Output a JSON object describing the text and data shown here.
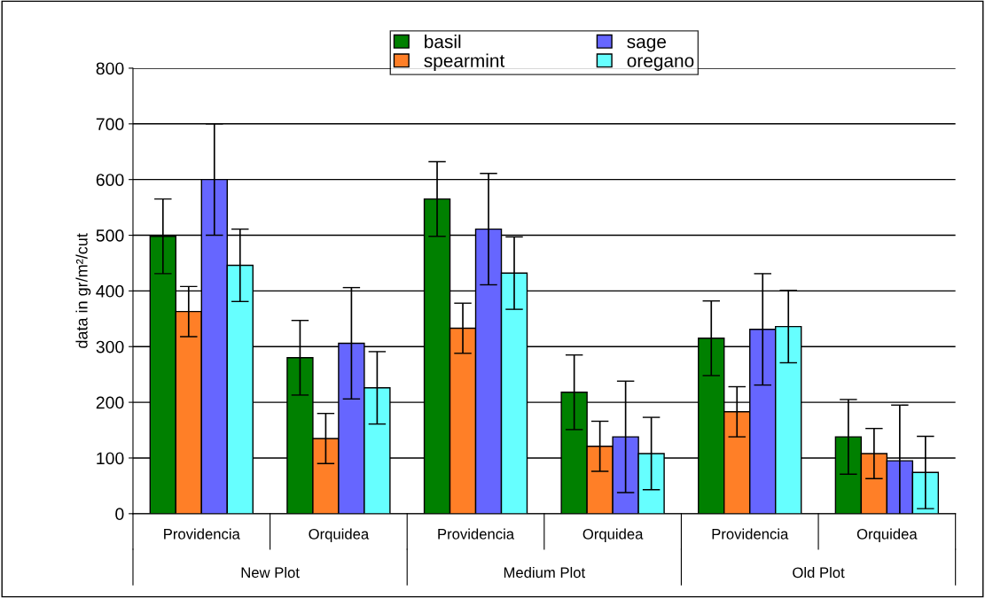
{
  "chart_data": {
    "type": "bar",
    "ylabel": "data in gr/m²/cut",
    "categories": [
      "Providencia",
      "Orquidea",
      "Providencia",
      "Orquidea",
      "Providencia",
      "Orquidea"
    ],
    "annotations": [
      "New Plot",
      "Medium Plot",
      "Old Plot"
    ],
    "series": [
      {
        "name": "basil",
        "color": "#008000",
        "values": [
          498,
          280,
          565,
          218,
          315,
          138
        ],
        "errors": [
          67,
          67,
          67,
          67,
          67,
          67
        ]
      },
      {
        "name": "spearmint",
        "color": "#ff7f27",
        "values": [
          363,
          135,
          333,
          121,
          183,
          108
        ],
        "errors": [
          45,
          45,
          45,
          45,
          45,
          45
        ]
      },
      {
        "name": "sage",
        "color": "#6666ff",
        "values": [
          600,
          306,
          511,
          138,
          331,
          95
        ],
        "errors": [
          100,
          100,
          100,
          100,
          100,
          100
        ]
      },
      {
        "name": "oregano",
        "color": "#66ffff",
        "values": [
          446,
          226,
          432,
          108,
          336,
          74
        ],
        "errors": [
          65,
          65,
          65,
          65,
          65,
          65
        ]
      }
    ],
    "ylim": [
      0,
      800
    ],
    "yticks": [
      0,
      100,
      200,
      300,
      400,
      500,
      600,
      700,
      800
    ],
    "grid": "y",
    "legend": "top"
  }
}
